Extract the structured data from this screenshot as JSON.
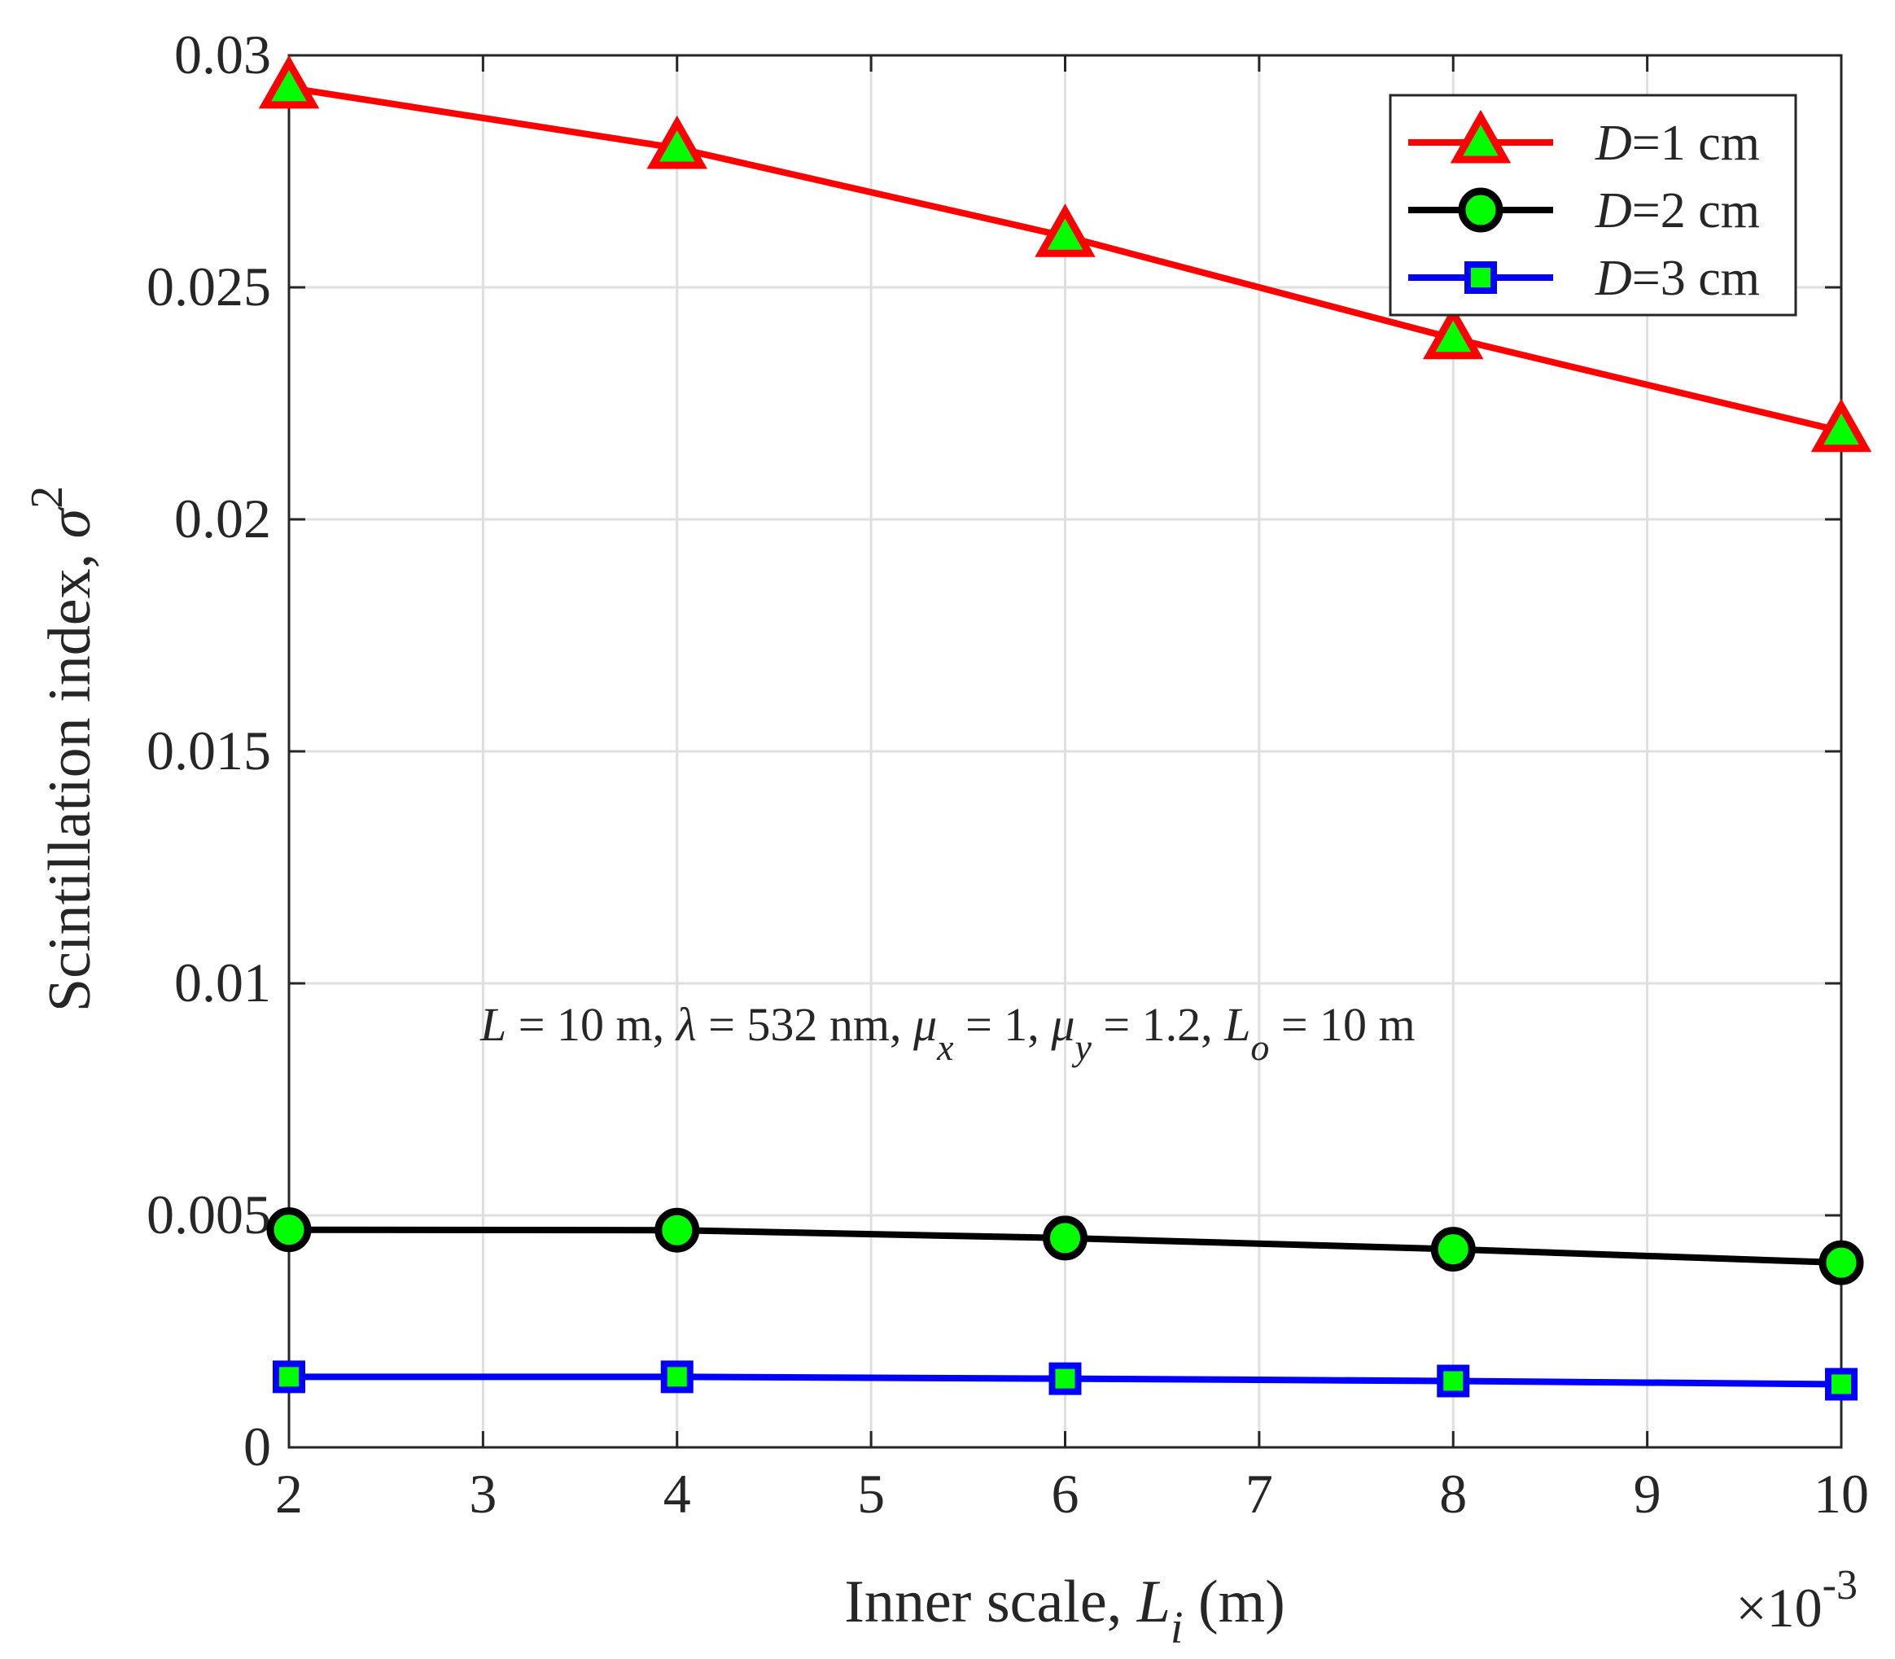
{
  "chart_data": {
    "type": "line",
    "x": [
      2,
      4,
      6,
      8,
      10
    ],
    "x_multiplier_label": "×10",
    "x_multiplier_exponent": "-3",
    "xlim": [
      2,
      10
    ],
    "ylim": [
      0,
      0.03
    ],
    "xticks": [
      2,
      3,
      4,
      5,
      6,
      7,
      8,
      9,
      10
    ],
    "xtick_labels": [
      "2",
      "3",
      "4",
      "5",
      "6",
      "7",
      "8",
      "9",
      "10"
    ],
    "yticks": [
      0,
      0.005,
      0.01,
      0.015,
      0.02,
      0.025,
      0.03
    ],
    "ytick_labels": [
      "0",
      "0.005",
      "0.01",
      "0.015",
      "0.02",
      "0.025",
      "0.03"
    ],
    "grid": true,
    "xlabel": {
      "text": "Inner scale, ",
      "symbol": "L",
      "subscript": "i",
      "unit": " (m)"
    },
    "ylabel": {
      "text": "Scintillation index, ",
      "symbol": "σ",
      "superscript": "2"
    },
    "legend_position": "top-right",
    "series": [
      {
        "name": "D=1 cm",
        "legend_symbol": "D",
        "legend_rest": "=1 cm",
        "marker": "triangle",
        "line_color": "#ff0000",
        "marker_edge": "#ff0000",
        "marker_fill": "#00ff00",
        "values": [
          0.0293,
          0.028,
          0.0261,
          0.0239,
          0.0219
        ]
      },
      {
        "name": "D=2 cm",
        "legend_symbol": "D",
        "legend_rest": "=2 cm",
        "marker": "circle",
        "line_color": "#000000",
        "marker_edge": "#000000",
        "marker_fill": "#00ff00",
        "values": [
          0.00469,
          0.00468,
          0.00451,
          0.00427,
          0.00398
        ]
      },
      {
        "name": "D=3 cm",
        "legend_symbol": "D",
        "legend_rest": "=3 cm",
        "marker": "square",
        "line_color": "#0000ff",
        "marker_edge": "#0000ff",
        "marker_fill": "#00ff00",
        "values": [
          0.00152,
          0.00152,
          0.00148,
          0.00143,
          0.00136
        ]
      }
    ],
    "annotation": {
      "parts": [
        {
          "t": "L",
          "i": true
        },
        {
          "t": " = 10 m, ",
          "i": false
        },
        {
          "t": "λ",
          "i": true
        },
        {
          "t": " = 532 nm, ",
          "i": false
        },
        {
          "t": "μ",
          "i": true
        },
        {
          "t": "x",
          "i": true,
          "sub": true
        },
        {
          "t": " = 1, ",
          "i": false
        },
        {
          "t": "μ",
          "i": true
        },
        {
          "t": "y",
          "i": true,
          "sub": true
        },
        {
          "t": " = 1.2, ",
          "i": false
        },
        {
          "t": "L",
          "i": true
        },
        {
          "t": "o",
          "i": true,
          "sub": true
        },
        {
          "t": " = 10 m",
          "i": false
        }
      ]
    }
  }
}
